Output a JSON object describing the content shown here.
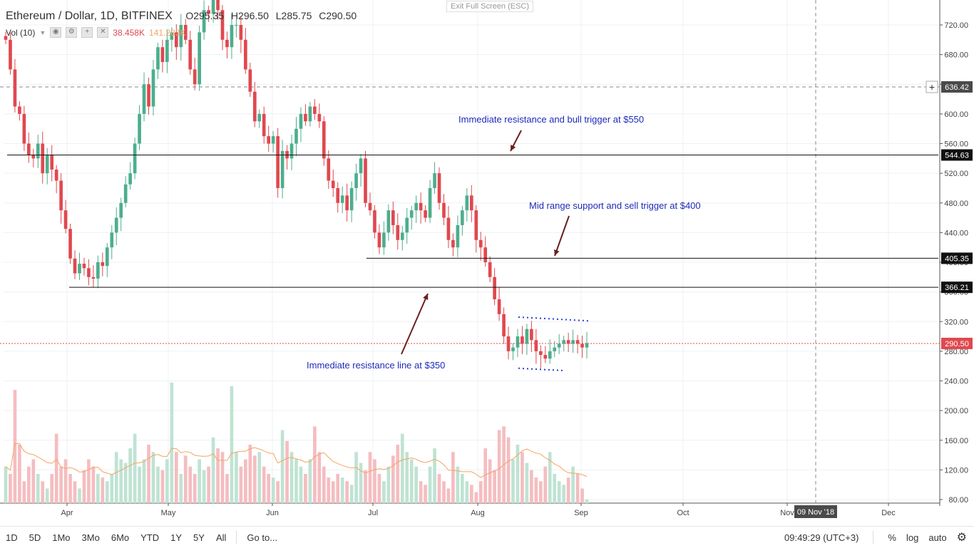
{
  "header": {
    "symbol": "Ethereum / Dollar, 1D, BITFINEX",
    "open": "O295.35",
    "high": "H296.50",
    "low": "L285.75",
    "close": "C290.50",
    "vol_label": "Vol (10)",
    "vol_value": "38.458K",
    "vol_ma": "141.283K",
    "exit_fullscreen": "Exit Full Screen (ESC)"
  },
  "colors": {
    "up": "#4cae8d",
    "down": "#e0484f",
    "vol_up": "#bfe3d3",
    "vol_down": "#f5bdc0",
    "vol_ma": "#f4a460",
    "annotation": "#1c2bb8",
    "arrow": "#6b2020",
    "hline": "#111111",
    "dotted": "#2c3cd0",
    "price_line": "#e0484f"
  },
  "chart_data": {
    "type": "candlestick",
    "title": "Ethereum / Dollar, 1D, BITFINEX",
    "ylim": [
      80,
      740
    ],
    "y_ticks": [
      "720.00",
      "680.00",
      "640.00",
      "600.00",
      "560.00",
      "520.00",
      "480.00",
      "440.00",
      "400.00",
      "360.00",
      "320.00",
      "280.00",
      "240.00",
      "200.00",
      "160.00",
      "120.00",
      "80.00"
    ],
    "x_ticks": [
      "Apr",
      "May",
      "Jun",
      "Jul",
      "Aug",
      "Sep",
      "Oct",
      "Nov",
      "Dec"
    ],
    "crosshair_date": "09 Nov '18",
    "crosshair_price": "636.42",
    "current_price": "290.50",
    "levels": [
      {
        "label": "544.63",
        "value": 544.63
      },
      {
        "label": "405.35",
        "value": 405.35
      },
      {
        "label": "366.21",
        "value": 366.21
      }
    ],
    "annotations": [
      "Immediate resistance and bull trigger at $550",
      "Mid range support and sell trigger at $400",
      "Immediate resistance line at $350"
    ],
    "closes": [
      700,
      660,
      610,
      600,
      560,
      545,
      540,
      560,
      520,
      545,
      525,
      510,
      470,
      445,
      405,
      385,
      398,
      392,
      380,
      378,
      400,
      395,
      420,
      440,
      460,
      480,
      505,
      520,
      560,
      600,
      640,
      610,
      660,
      690,
      670,
      700,
      710,
      690,
      720,
      700,
      660,
      640,
      710,
      740,
      735,
      770,
      740,
      700,
      690,
      720,
      720,
      700,
      660,
      630,
      590,
      600,
      570,
      560,
      570,
      500,
      550,
      540,
      560,
      580,
      600,
      590,
      610,
      600,
      590,
      540,
      510,
      500,
      480,
      490,
      470,
      500,
      520,
      540,
      480,
      470,
      440,
      420,
      440,
      470,
      450,
      430,
      440,
      460,
      470,
      480,
      470,
      460,
      500,
      520,
      480,
      460,
      430,
      420,
      450,
      470,
      490,
      470,
      430,
      420,
      400,
      380,
      350,
      330,
      300,
      280,
      285,
      300,
      290,
      310,
      295,
      280,
      275,
      270,
      280,
      285,
      290,
      295,
      290,
      295,
      290,
      285,
      291
    ],
    "volumes": [
      130,
      120,
      235,
      160,
      110,
      130,
      140,
      120,
      110,
      100,
      120,
      175,
      130,
      140,
      120,
      110,
      100,
      125,
      140,
      130,
      120,
      115,
      110,
      120,
      150,
      140,
      135,
      155,
      175,
      130,
      140,
      160,
      150,
      130,
      125,
      140,
      245,
      150,
      120,
      145,
      130,
      120,
      140,
      125,
      130,
      170,
      155,
      150,
      120,
      240,
      150,
      130,
      140,
      160,
      145,
      150,
      130,
      120,
      115,
      110,
      180,
      165,
      150,
      140,
      130,
      120,
      140,
      185,
      150,
      130,
      115,
      110,
      120,
      115,
      110,
      105,
      150,
      135,
      125,
      150,
      140,
      120,
      110,
      130,
      145,
      160,
      175,
      150,
      140,
      130,
      110,
      105,
      130,
      155,
      120,
      110,
      100,
      150,
      130,
      120,
      110,
      105,
      95,
      110,
      155,
      140,
      125,
      180,
      185,
      170,
      140,
      160,
      150,
      135,
      125,
      115,
      110,
      130,
      150,
      120,
      110,
      105,
      115,
      130,
      120,
      100,
      85
    ]
  },
  "bottom": {
    "ranges": [
      "1D",
      "5D",
      "1Mo",
      "3Mo",
      "6Mo",
      "YTD",
      "1Y",
      "5Y",
      "All"
    ],
    "goto": "Go to...",
    "time": "09:49:29 (UTC+3)",
    "pct": "%",
    "log": "log",
    "auto": "auto"
  }
}
